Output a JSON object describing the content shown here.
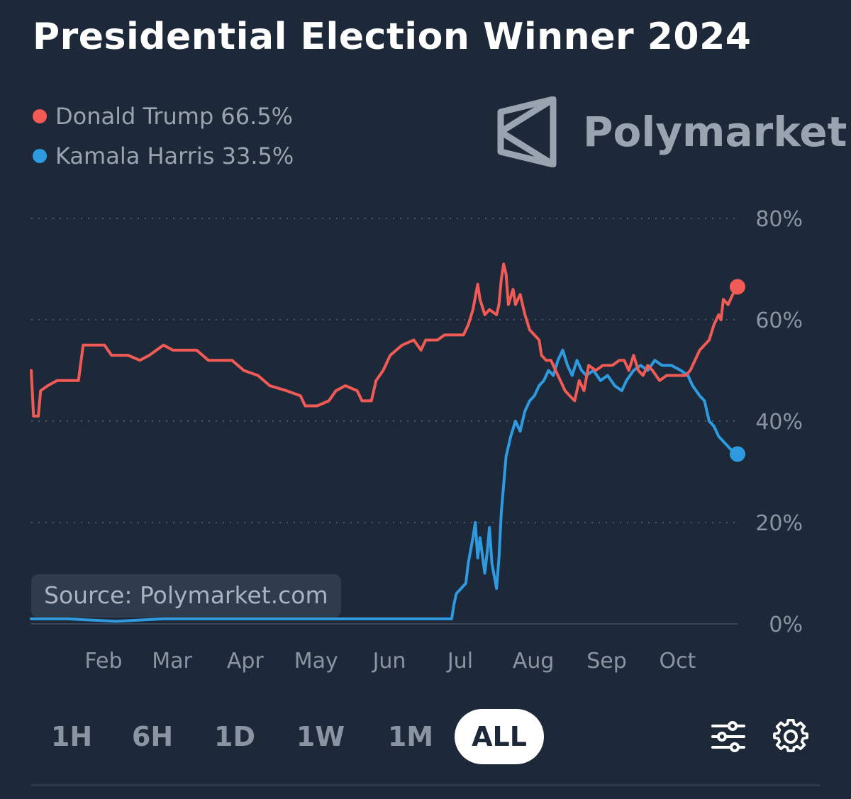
{
  "title": "Presidential Election Winner 2024",
  "legend": [
    {
      "name": "Donald Trump",
      "value": "66.5%",
      "color": "#f25a55"
    },
    {
      "name": "Kamala Harris",
      "value": "33.5%",
      "color": "#2e9be0"
    }
  ],
  "brand": {
    "name": "Polymarket",
    "icon": "polymarket-logo-icon"
  },
  "source": "Source: Polymarket.com",
  "range_buttons": [
    {
      "label": "1H",
      "active": false
    },
    {
      "label": "6H",
      "active": false
    },
    {
      "label": "1D",
      "active": false
    },
    {
      "label": "1W",
      "active": false
    },
    {
      "label": "1M",
      "active": false
    },
    {
      "label": "ALL",
      "active": true
    }
  ],
  "tools": [
    {
      "icon": "sliders-icon"
    },
    {
      "icon": "gear-icon"
    }
  ],
  "chart_data": {
    "type": "line",
    "title": "Presidential Election Winner 2024",
    "xlabel": "",
    "ylabel": "",
    "x_axis": "date",
    "xlim": [
      "2024-01-05",
      "2024-10-30"
    ],
    "ylim": [
      0,
      80
    ],
    "y_ticks": [
      0,
      20,
      40,
      60,
      80
    ],
    "y_tick_labels": [
      "0%",
      "20%",
      "40%",
      "60%",
      "80%"
    ],
    "x_ticks": [
      "2024-02-01",
      "2024-03-01",
      "2024-04-01",
      "2024-05-01",
      "2024-06-01",
      "2024-07-01",
      "2024-08-01",
      "2024-09-01",
      "2024-10-01"
    ],
    "x_tick_labels": [
      "Feb",
      "Mar",
      "Apr",
      "May",
      "Jun",
      "Jul",
      "Aug",
      "Sep",
      "Oct"
    ],
    "grid": "horizontal-dotted",
    "legend_position": "top-left",
    "series": [
      {
        "name": "Donald Trump",
        "color": "#f25a55",
        "last_value": 66.5,
        "points": [
          [
            "2024-01-05",
            50
          ],
          [
            "2024-01-06",
            41
          ],
          [
            "2024-01-08",
            41
          ],
          [
            "2024-01-09",
            46
          ],
          [
            "2024-01-12",
            47
          ],
          [
            "2024-01-16",
            48
          ],
          [
            "2024-01-25",
            48
          ],
          [
            "2024-01-27",
            55
          ],
          [
            "2024-02-05",
            55
          ],
          [
            "2024-02-08",
            53
          ],
          [
            "2024-02-15",
            53
          ],
          [
            "2024-02-20",
            52
          ],
          [
            "2024-02-24",
            53
          ],
          [
            "2024-03-01",
            55
          ],
          [
            "2024-03-05",
            54
          ],
          [
            "2024-03-15",
            54
          ],
          [
            "2024-03-20",
            52
          ],
          [
            "2024-03-30",
            52
          ],
          [
            "2024-04-04",
            50
          ],
          [
            "2024-04-10",
            49
          ],
          [
            "2024-04-15",
            47
          ],
          [
            "2024-04-22",
            46
          ],
          [
            "2024-04-28",
            45
          ],
          [
            "2024-04-30",
            43
          ],
          [
            "2024-05-05",
            43
          ],
          [
            "2024-05-10",
            44
          ],
          [
            "2024-05-13",
            46
          ],
          [
            "2024-05-17",
            47
          ],
          [
            "2024-05-22",
            46
          ],
          [
            "2024-05-24",
            44
          ],
          [
            "2024-05-28",
            44
          ],
          [
            "2024-05-30",
            48
          ],
          [
            "2024-06-02",
            50
          ],
          [
            "2024-06-05",
            53
          ],
          [
            "2024-06-10",
            55
          ],
          [
            "2024-06-15",
            56
          ],
          [
            "2024-06-18",
            54
          ],
          [
            "2024-06-20",
            56
          ],
          [
            "2024-06-25",
            56
          ],
          [
            "2024-06-28",
            57
          ],
          [
            "2024-07-01",
            57
          ],
          [
            "2024-07-06",
            57
          ],
          [
            "2024-07-08",
            59
          ],
          [
            "2024-07-10",
            62
          ],
          [
            "2024-07-12",
            67
          ],
          [
            "2024-07-13",
            64
          ],
          [
            "2024-07-15",
            61
          ],
          [
            "2024-07-17",
            62
          ],
          [
            "2024-07-20",
            61
          ],
          [
            "2024-07-21",
            63
          ],
          [
            "2024-07-22",
            68
          ],
          [
            "2024-07-23",
            71
          ],
          [
            "2024-07-24",
            69
          ],
          [
            "2024-07-25",
            63
          ],
          [
            "2024-07-27",
            66
          ],
          [
            "2024-07-28",
            63
          ],
          [
            "2024-07-30",
            65
          ],
          [
            "2024-08-01",
            61
          ],
          [
            "2024-08-03",
            58
          ],
          [
            "2024-08-05",
            57
          ],
          [
            "2024-08-07",
            56
          ],
          [
            "2024-08-08",
            53
          ],
          [
            "2024-08-10",
            52
          ],
          [
            "2024-08-12",
            52
          ],
          [
            "2024-08-14",
            50
          ],
          [
            "2024-08-16",
            48
          ],
          [
            "2024-08-18",
            46
          ],
          [
            "2024-08-20",
            45
          ],
          [
            "2024-08-22",
            44
          ],
          [
            "2024-08-24",
            48
          ],
          [
            "2024-08-26",
            46
          ],
          [
            "2024-08-28",
            51
          ],
          [
            "2024-08-31",
            50
          ],
          [
            "2024-09-03",
            51
          ],
          [
            "2024-09-07",
            51
          ],
          [
            "2024-09-10",
            52
          ],
          [
            "2024-09-12",
            52
          ],
          [
            "2024-09-14",
            50
          ],
          [
            "2024-09-16",
            53
          ],
          [
            "2024-09-18",
            50
          ],
          [
            "2024-09-20",
            49
          ],
          [
            "2024-09-22",
            51
          ],
          [
            "2024-09-24",
            50
          ],
          [
            "2024-09-27",
            48
          ],
          [
            "2024-09-30",
            49
          ],
          [
            "2024-10-04",
            49
          ],
          [
            "2024-10-08",
            49
          ],
          [
            "2024-10-10",
            50
          ],
          [
            "2024-10-12",
            52
          ],
          [
            "2024-10-14",
            54
          ],
          [
            "2024-10-16",
            55
          ],
          [
            "2024-10-18",
            56
          ],
          [
            "2024-10-20",
            59
          ],
          [
            "2024-10-22",
            61
          ],
          [
            "2024-10-23",
            60
          ],
          [
            "2024-10-24",
            64
          ],
          [
            "2024-10-26",
            63
          ],
          [
            "2024-10-28",
            65
          ],
          [
            "2024-10-30",
            66.5
          ]
        ]
      },
      {
        "name": "Kamala Harris",
        "color": "#2e9be0",
        "last_value": 33.5,
        "points": [
          [
            "2024-01-05",
            1
          ],
          [
            "2024-01-20",
            1
          ],
          [
            "2024-02-10",
            0.5
          ],
          [
            "2024-03-01",
            1
          ],
          [
            "2024-04-01",
            1
          ],
          [
            "2024-05-01",
            1
          ],
          [
            "2024-06-01",
            1
          ],
          [
            "2024-06-20",
            1
          ],
          [
            "2024-06-28",
            1
          ],
          [
            "2024-07-01",
            1
          ],
          [
            "2024-07-02",
            4
          ],
          [
            "2024-07-03",
            6
          ],
          [
            "2024-07-05",
            7
          ],
          [
            "2024-07-07",
            8
          ],
          [
            "2024-07-08",
            12
          ],
          [
            "2024-07-10",
            17
          ],
          [
            "2024-07-11",
            20
          ],
          [
            "2024-07-12",
            13
          ],
          [
            "2024-07-13",
            17
          ],
          [
            "2024-07-15",
            10
          ],
          [
            "2024-07-16",
            14
          ],
          [
            "2024-07-17",
            19
          ],
          [
            "2024-07-18",
            12
          ],
          [
            "2024-07-20",
            7
          ],
          [
            "2024-07-21",
            13
          ],
          [
            "2024-07-22",
            22
          ],
          [
            "2024-07-24",
            33
          ],
          [
            "2024-07-26",
            37
          ],
          [
            "2024-07-28",
            40
          ],
          [
            "2024-07-30",
            38
          ],
          [
            "2024-08-01",
            42
          ],
          [
            "2024-08-03",
            44
          ],
          [
            "2024-08-05",
            45
          ],
          [
            "2024-08-07",
            47
          ],
          [
            "2024-08-09",
            48
          ],
          [
            "2024-08-11",
            50
          ],
          [
            "2024-08-13",
            49
          ],
          [
            "2024-08-15",
            52
          ],
          [
            "2024-08-17",
            54
          ],
          [
            "2024-08-19",
            51
          ],
          [
            "2024-08-21",
            49
          ],
          [
            "2024-08-23",
            52
          ],
          [
            "2024-08-25",
            50
          ],
          [
            "2024-08-27",
            49
          ],
          [
            "2024-08-30",
            50
          ],
          [
            "2024-09-02",
            48
          ],
          [
            "2024-09-05",
            49
          ],
          [
            "2024-09-08",
            47
          ],
          [
            "2024-09-11",
            46
          ],
          [
            "2024-09-13",
            48
          ],
          [
            "2024-09-16",
            50
          ],
          [
            "2024-09-19",
            51
          ],
          [
            "2024-09-22",
            50
          ],
          [
            "2024-09-25",
            52
          ],
          [
            "2024-09-28",
            51
          ],
          [
            "2024-10-02",
            51
          ],
          [
            "2024-10-06",
            50
          ],
          [
            "2024-10-09",
            49
          ],
          [
            "2024-10-11",
            47
          ],
          [
            "2024-10-14",
            45
          ],
          [
            "2024-10-16",
            44
          ],
          [
            "2024-10-18",
            40
          ],
          [
            "2024-10-20",
            39
          ],
          [
            "2024-10-22",
            37
          ],
          [
            "2024-10-24",
            36
          ],
          [
            "2024-10-26",
            35
          ],
          [
            "2024-10-28",
            34
          ],
          [
            "2024-10-30",
            33.5
          ]
        ]
      }
    ]
  }
}
